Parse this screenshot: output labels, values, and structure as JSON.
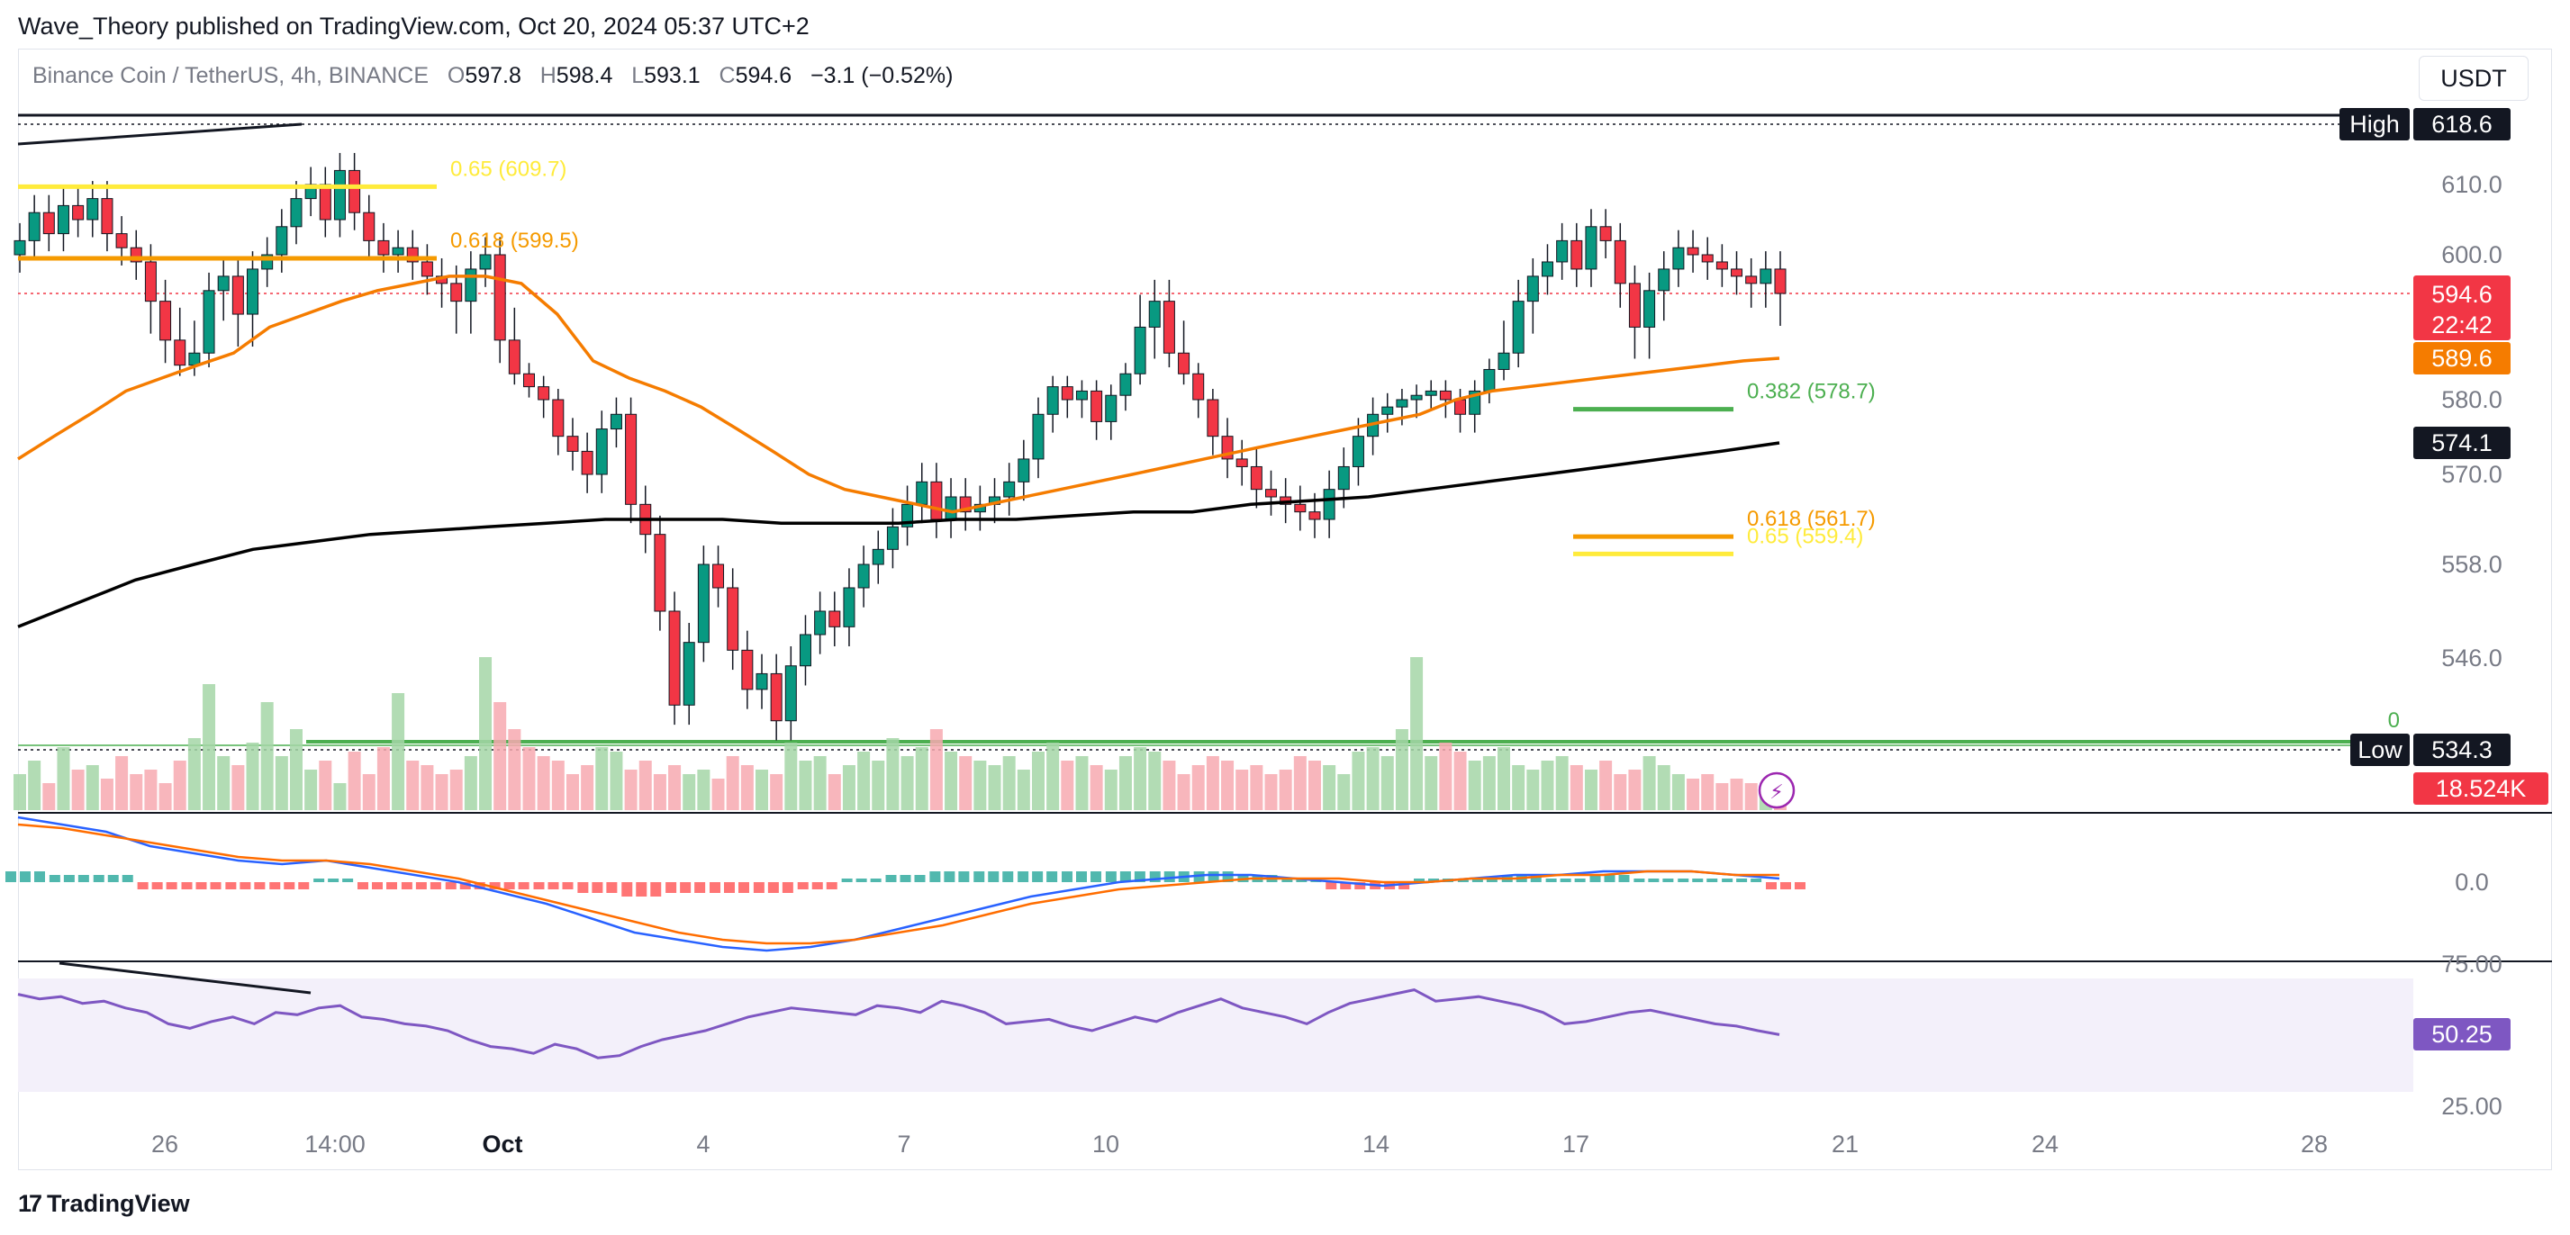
{
  "publisher": "Wave_Theory published on TradingView.com, Oct 20, 2024 05:37 UTC+2",
  "legend": {
    "symbol": "Binance Coin / TetherUS, 4h, BINANCE",
    "o_label": "O",
    "o": "597.8",
    "h_label": "H",
    "h": "598.4",
    "l_label": "L",
    "l": "593.1",
    "c_label": "C",
    "c": "594.6",
    "change": "−3.1 (−0.52%)"
  },
  "currency": "USDT",
  "footer": {
    "logo_mark": "17",
    "brand": "TradingView"
  },
  "colors": {
    "up": "#089981",
    "down": "#f23645",
    "ema50": "#f57c00",
    "ema200": "#000000",
    "fib065": "#ffeb3b",
    "fib0618": "#f59a00",
    "fib0382": "#4caf50",
    "vol_up": "#a5d6a7",
    "vol_down": "#f7a9b0",
    "macd": "#2962ff",
    "signal": "#ff6d00",
    "rsi": "#7e57c2",
    "rsi_band": "#f3f0fa"
  },
  "chart_data": [
    {
      "type": "candlestick",
      "title": "Binance Coin / TetherUS, 4h, BINANCE",
      "y_ticks": [
        "610.0",
        "600.0",
        "580.0",
        "570.0",
        "558.0",
        "546.0"
      ],
      "x_ticks": [
        "26",
        "14:00",
        "Oct",
        "4",
        "7",
        "10",
        "14",
        "17",
        "21",
        "24",
        "28"
      ],
      "price_labels": {
        "high_label": "High",
        "high": "618.6",
        "last": "594.6",
        "countdown": "22:42",
        "ema50": "589.6",
        "ema200": "574.1",
        "low_label": "Low",
        "low": "534.3",
        "volume": "18.524K"
      },
      "fib_levels": [
        {
          "label": "0.65 (609.7)",
          "price": 609.7,
          "color": "fib065",
          "group": "left"
        },
        {
          "label": "0.618 (599.5)",
          "price": 599.5,
          "color": "fib0618",
          "group": "left"
        },
        {
          "label": "0.382 (578.7)",
          "price": 578.7,
          "color": "fib0382",
          "group": "right"
        },
        {
          "label": "0.618 (561.7)",
          "price": 561.7,
          "color": "fib0618",
          "group": "right"
        },
        {
          "label": "0.65 (559.4)",
          "price": 559.4,
          "color": "fib065",
          "group": "right"
        },
        {
          "label": "0",
          "price": 535.2,
          "color": "fib0382",
          "group": "right"
        }
      ],
      "close_series": [
        602,
        606,
        603,
        607,
        605,
        608,
        603,
        601,
        599,
        594,
        591,
        588,
        590,
        595,
        597,
        593,
        598,
        600,
        604,
        608,
        610,
        605,
        612,
        606,
        602,
        600,
        601,
        599,
        597,
        596,
        594,
        598,
        600,
        591,
        586,
        583,
        580,
        575,
        573,
        570,
        576,
        578,
        566,
        562,
        552,
        540,
        548,
        558,
        555,
        547,
        542,
        544,
        538,
        545,
        549,
        552,
        550,
        555,
        558,
        560,
        563,
        566,
        569,
        564,
        567,
        565,
        566,
        567,
        569,
        572,
        578,
        583,
        580,
        582,
        577,
        581,
        586,
        592,
        594,
        590,
        586,
        580,
        575,
        572,
        571,
        568,
        567,
        566,
        565,
        564,
        568,
        571,
        575,
        578,
        579,
        580,
        581,
        582,
        580,
        578,
        582,
        587,
        590,
        594,
        597,
        599,
        602,
        598,
        604,
        602,
        596,
        592,
        595,
        598,
        601,
        600,
        599,
        598,
        597,
        596,
        598,
        594.6
      ],
      "ema50_series": [
        572,
        575,
        578,
        582,
        585,
        588,
        590,
        592,
        593,
        594,
        595,
        596,
        597,
        597,
        596,
        593,
        589,
        585,
        582,
        579,
        576,
        573,
        570,
        568,
        567,
        566,
        565,
        566,
        567,
        568,
        569,
        570,
        571,
        572,
        573,
        574,
        575,
        576,
        577,
        578,
        580,
        582,
        583,
        584,
        585,
        586,
        587,
        588,
        589,
        589.6
      ],
      "ema200_series": [
        550,
        553,
        556,
        558,
        560,
        561,
        562,
        562.5,
        563,
        563.5,
        564,
        564,
        564,
        563.5,
        563.5,
        563.5,
        564,
        564,
        564.5,
        565,
        565,
        566,
        566.5,
        567,
        568,
        569,
        570,
        571,
        572,
        573,
        574.1
      ],
      "rsi_series": [
        68,
        66,
        67,
        64,
        65,
        62,
        60,
        55,
        53,
        56,
        58,
        55,
        60,
        59,
        62,
        63,
        58,
        57,
        55,
        54,
        52,
        48,
        45,
        44,
        42,
        46,
        44,
        40,
        41,
        45,
        48,
        50,
        52,
        55,
        58,
        60,
        62,
        61,
        60,
        59,
        63,
        62,
        60,
        65,
        63,
        60,
        55,
        56,
        57,
        54,
        52,
        55,
        58,
        56,
        60,
        63,
        66,
        62,
        60,
        58,
        55,
        60,
        64,
        66,
        68,
        70,
        65,
        66,
        67,
        65,
        63,
        60,
        55,
        56,
        58,
        60,
        61,
        59,
        57,
        55,
        54,
        52,
        50.25
      ],
      "macd_series": [
        18,
        16,
        14,
        10,
        8,
        6,
        5,
        6,
        4,
        2,
        0,
        -3,
        -6,
        -10,
        -14,
        -16,
        -18,
        -19,
        -18,
        -16,
        -13,
        -10,
        -7,
        -4,
        -2,
        0,
        1,
        2,
        2,
        1,
        0,
        -1,
        0,
        1,
        2,
        2,
        3,
        3,
        3,
        2,
        1
      ],
      "signal_series": [
        16,
        15,
        13,
        11,
        9,
        7,
        6,
        6,
        5,
        3,
        1,
        -2,
        -5,
        -8,
        -11,
        -14,
        -16,
        -17,
        -17,
        -16,
        -14,
        -12,
        -9,
        -6,
        -4,
        -2,
        -1,
        0,
        1,
        1,
        1,
        0,
        0,
        1,
        1,
        2,
        2,
        3,
        3,
        2,
        2
      ],
      "macd_zero": "0.0",
      "rsi_ticks": [
        "75.00",
        "25.00"
      ],
      "rsi_last": "50.25"
    }
  ]
}
